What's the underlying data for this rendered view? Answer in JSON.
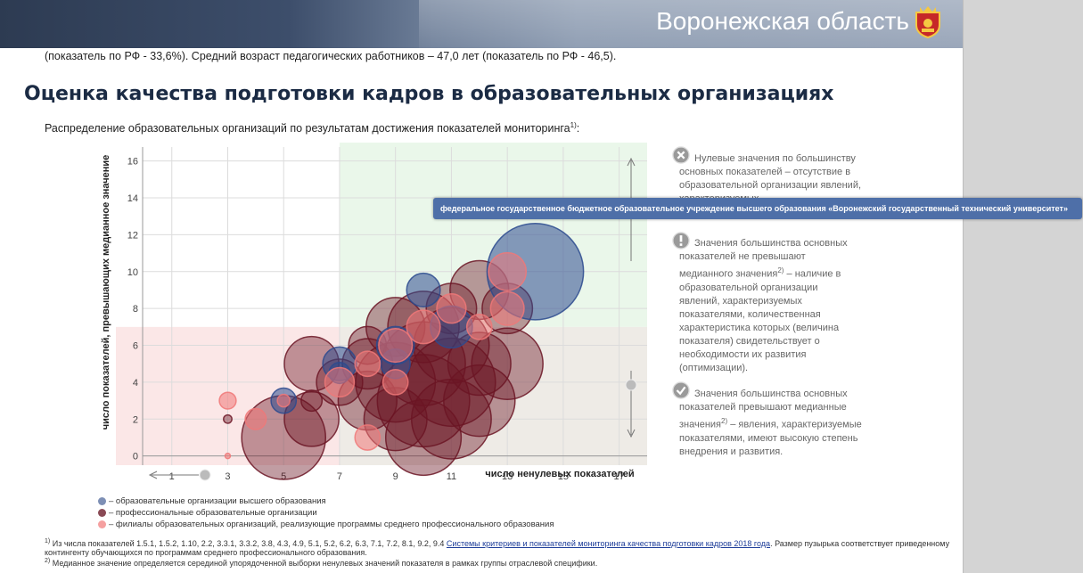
{
  "header": {
    "title": "Воронежская область"
  },
  "intro_text": "(показатель по РФ - 33,6%). Средний возраст педагогических работников – 47,0 лет (показатель по РФ - 46,5).",
  "section_title": "Оценка качества подготовки кадров в образовательных организациях",
  "subtitle": {
    "text": "Распределение образовательных организаций по результатам достижения показателей мониторинга",
    "sup": "1)",
    "suffix": ":"
  },
  "tooltip": "федеральное государственное бюджетное образовательное учреждение высшего образования «Воронежский государственный технический университет»",
  "side_notes": {
    "zero": "Нулевые значения по большинству основных показателей – отсутствие в образовательной организации явлений, характеризуемых",
    "below_a": "Значения большинства основных показателей не превышают медианного значения",
    "below_sup": "2)",
    "below_b": " – наличие в образовательной организации явлений, характеризуемых показателями, количественная характеристика которых (величина показателя) свидетельствует о необходимости их развития (оптимизации).",
    "above_a": "Значения большинства основных показателей превышают медианные значения",
    "above_sup": "2)",
    "above_b": " – явления, характеризуемые показателями, имеют высокую степень внедрения и развития."
  },
  "legend": [
    {
      "label": "– образовательные организации высшего образования",
      "color": "#4a66a0"
    },
    {
      "label": "– профессиональные образовательные организации",
      "color": "#6b2230"
    },
    {
      "label": "– филиалы образовательных организаций, реализующие программы среднего профессионального образования",
      "color": "#f08080"
    }
  ],
  "footnotes": {
    "f1_sup": "1)",
    "f1_a": " Из числа показателей 1.5.1, 1.5.2, 1.10, 2.2, 3.3.1, 3.3.2, 3.8, 4.3, 4.9, 5.1, 5.2, 6.2, 6.3, 7.1, 7.2, 8.1, 9.2, 9.4 ",
    "f1_link": "Системы критериев и показателей мониторинга качества подготовки кадров 2018 года",
    "f1_b": ". Размер пузырька соответствует приведенному контингенту обучающихся по программам среднего профессионального образования.",
    "f2_sup": "2)",
    "f2": " Медианное значение определяется серединой упорядоченной выборки ненулевых значений показателя в рамках группы отраслевой специфики."
  },
  "chart_data": {
    "type": "scatter",
    "xlabel": "число ненулевых показателей",
    "ylabel": "число показателей, превышающих медианное значение",
    "xlim": [
      -1,
      18
    ],
    "ylim": [
      -0.5,
      17
    ],
    "x_ticks": [
      1,
      3,
      5,
      7,
      9,
      11,
      13,
      15,
      17
    ],
    "y_ticks": [
      0,
      2,
      4,
      6,
      8,
      10,
      12,
      14,
      16
    ],
    "y_tick_labels": [
      "0",
      "2",
      "4",
      "6",
      "8",
      "10",
      "12",
      "14",
      "16"
    ],
    "regions": {
      "median_x": 7,
      "median_y": 7
    },
    "series": [
      {
        "name": "– образовательные организации высшего образования",
        "color": "#2b4a8e",
        "points": [
          [
            14,
            10,
            2.3
          ],
          [
            10,
            9,
            0.8
          ],
          [
            11,
            7,
            1.0
          ],
          [
            9,
            6,
            0.9
          ],
          [
            7,
            5,
            0.8
          ],
          [
            5,
            3,
            0.6
          ],
          [
            9,
            5,
            0.7
          ],
          [
            7,
            4.5,
            0.5
          ]
        ]
      },
      {
        "name": "– профессиональные образовательные организации",
        "color": "#6b1524",
        "points": [
          [
            5,
            1,
            2.0
          ],
          [
            6,
            2,
            1.3
          ],
          [
            6,
            5,
            1.3
          ],
          [
            7,
            4,
            1.1
          ],
          [
            8,
            3,
            1.4
          ],
          [
            9,
            2,
            1.5
          ],
          [
            9,
            4,
            1.9
          ],
          [
            10,
            1,
            1.8
          ],
          [
            10,
            3,
            2.2
          ],
          [
            10,
            5,
            2.0
          ],
          [
            11,
            2,
            1.9
          ],
          [
            11,
            4,
            2.1
          ],
          [
            12,
            3,
            1.7
          ],
          [
            12,
            5,
            1.5
          ],
          [
            10,
            7,
            1.7
          ],
          [
            9,
            7,
            1.4
          ],
          [
            11,
            6,
            1.8
          ],
          [
            8,
            5,
            1.2
          ],
          [
            13,
            5,
            1.7
          ],
          [
            13,
            8,
            1.2
          ],
          [
            12,
            9,
            1.4
          ],
          [
            11,
            8,
            1.2
          ],
          [
            3,
            2,
            0.2
          ],
          [
            6,
            3,
            0.5
          ],
          [
            8,
            6,
            0.9
          ]
        ]
      },
      {
        "name": "– филиалы образовательных организаций, реализующие программы среднего профессионального образования",
        "color": "#f07878",
        "points": [
          [
            3,
            3,
            0.4
          ],
          [
            3,
            0,
            0.1
          ],
          [
            4,
            2,
            0.5
          ],
          [
            5,
            3,
            0.3
          ],
          [
            8,
            1,
            0.6
          ],
          [
            7,
            4,
            0.7
          ],
          [
            8,
            5,
            0.6
          ],
          [
            9,
            6,
            0.8
          ],
          [
            10,
            7,
            0.8
          ],
          [
            11,
            8,
            0.7
          ],
          [
            13,
            10,
            0.9
          ],
          [
            13,
            8,
            0.8
          ],
          [
            9,
            4,
            0.6
          ],
          [
            12,
            7,
            0.6
          ]
        ]
      }
    ]
  }
}
